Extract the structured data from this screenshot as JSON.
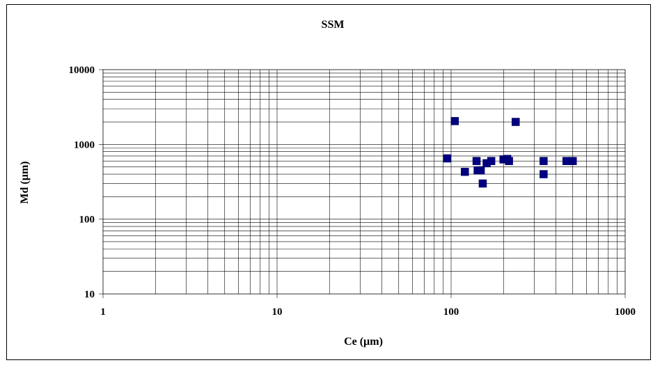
{
  "chart_data": {
    "type": "scatter",
    "title": "SSM",
    "xlabel": "Ce (µm)",
    "ylabel": "Md (µm)",
    "x_scale": "log",
    "y_scale": "log",
    "xlim": [
      1,
      1000
    ],
    "ylim": [
      10,
      10000
    ],
    "x_ticks": [
      "1",
      "10",
      "100",
      "1000"
    ],
    "y_ticks": [
      "10",
      "100",
      "1000",
      "10000"
    ],
    "grid": true,
    "legend": "none",
    "marker_color": "#000080",
    "series": [
      {
        "x": [
          95,
          105,
          120,
          140,
          142,
          148,
          152,
          160,
          170,
          200,
          210,
          215,
          235,
          340,
          340,
          460,
          500
        ],
        "y": [
          650,
          2050,
          430,
          600,
          450,
          450,
          300,
          560,
          600,
          630,
          640,
          600,
          2000,
          600,
          400,
          600,
          600
        ]
      }
    ]
  }
}
